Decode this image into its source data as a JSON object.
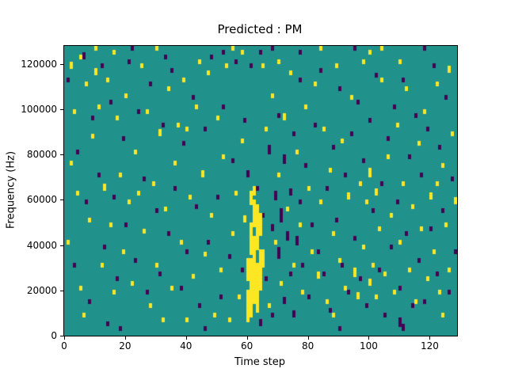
{
  "chart_data": {
    "type": "heatmap",
    "title": "Predicted : PM",
    "xlabel": "Time step",
    "ylabel": "Frequency (Hz)",
    "x_range": [
      0,
      129
    ],
    "y_range": [
      0,
      128000
    ],
    "x_ticks": [
      0,
      20,
      40,
      60,
      80,
      100,
      120
    ],
    "y_ticks": [
      0,
      20000,
      40000,
      60000,
      80000,
      100000,
      120000
    ],
    "grid": {
      "cols": 129,
      "rows": 128,
      "cell_hz": 1000
    },
    "colors": {
      "background": "#21918c",
      "high": "#fde725",
      "low": "#440154"
    },
    "legend": "none",
    "note_runs_format": "[time_step, freq_bin_start(kHz), bin_run_length]",
    "yellow_runs": [
      [
        2,
        118,
        3
      ],
      [
        3,
        98,
        2
      ],
      [
        4,
        62,
        2
      ],
      [
        5,
        20,
        2
      ],
      [
        6,
        8,
        2
      ],
      [
        1,
        40,
        2
      ],
      [
        2,
        75,
        2
      ],
      [
        7,
        110,
        2
      ],
      [
        9,
        87,
        2
      ],
      [
        10,
        115,
        3
      ],
      [
        11,
        100,
        2
      ],
      [
        12,
        30,
        2
      ],
      [
        13,
        64,
        3
      ],
      [
        14,
        112,
        2
      ],
      [
        15,
        48,
        2
      ],
      [
        16,
        18,
        2
      ],
      [
        17,
        95,
        2
      ],
      [
        18,
        70,
        2
      ],
      [
        19,
        36,
        2
      ],
      [
        20,
        105,
        2
      ],
      [
        21,
        58,
        2
      ],
      [
        22,
        22,
        2
      ],
      [
        23,
        80,
        2
      ],
      [
        25,
        118,
        2
      ],
      [
        26,
        45,
        2
      ],
      [
        27,
        98,
        2
      ],
      [
        28,
        12,
        2
      ],
      [
        29,
        66,
        2
      ],
      [
        30,
        30,
        2
      ],
      [
        31,
        88,
        3
      ],
      [
        33,
        55,
        2
      ],
      [
        34,
        108,
        2
      ],
      [
        35,
        20,
        2
      ],
      [
        36,
        75,
        2
      ],
      [
        38,
        40,
        2
      ],
      [
        39,
        112,
        2
      ],
      [
        40,
        90,
        2
      ],
      [
        41,
        60,
        2
      ],
      [
        42,
        25,
        2
      ],
      [
        43,
        100,
        2
      ],
      [
        45,
        70,
        3
      ],
      [
        46,
        35,
        2
      ],
      [
        47,
        115,
        2
      ],
      [
        48,
        52,
        2
      ],
      [
        49,
        8,
        2
      ],
      [
        50,
        95,
        2
      ],
      [
        51,
        28,
        2
      ],
      [
        52,
        78,
        2
      ],
      [
        53,
        118,
        2
      ],
      [
        55,
        44,
        2
      ],
      [
        56,
        62,
        2
      ],
      [
        57,
        16,
        2
      ],
      [
        58,
        85,
        2
      ],
      [
        59,
        50,
        3
      ],
      [
        60,
        6,
        14
      ],
      [
        60,
        24,
        10
      ],
      [
        61,
        8,
        26
      ],
      [
        61,
        36,
        14
      ],
      [
        62,
        14,
        30
      ],
      [
        62,
        48,
        12
      ],
      [
        63,
        10,
        22
      ],
      [
        63,
        38,
        20
      ],
      [
        64,
        20,
        18
      ],
      [
        64,
        44,
        10
      ],
      [
        65,
        30,
        8
      ],
      [
        62,
        62,
        4
      ],
      [
        61,
        58,
        6
      ],
      [
        66,
        90,
        2
      ],
      [
        67,
        12,
        2
      ],
      [
        68,
        105,
        2
      ],
      [
        69,
        40,
        2
      ],
      [
        70,
        70,
        2
      ],
      [
        71,
        22,
        2
      ],
      [
        72,
        95,
        3
      ],
      [
        73,
        55,
        2
      ],
      [
        74,
        115,
        2
      ],
      [
        75,
        30,
        2
      ],
      [
        76,
        80,
        2
      ],
      [
        77,
        48,
        2
      ],
      [
        78,
        18,
        2
      ],
      [
        79,
        100,
        2
      ],
      [
        80,
        64,
        2
      ],
      [
        81,
        36,
        2
      ],
      [
        82,
        110,
        2
      ],
      [
        83,
        25,
        3
      ],
      [
        84,
        58,
        2
      ],
      [
        85,
        90,
        2
      ],
      [
        86,
        14,
        2
      ],
      [
        87,
        72,
        2
      ],
      [
        88,
        44,
        2
      ],
      [
        89,
        118,
        2
      ],
      [
        90,
        32,
        2
      ],
      [
        91,
        85,
        2
      ],
      [
        92,
        20,
        2
      ],
      [
        93,
        60,
        3
      ],
      [
        94,
        104,
        2
      ],
      [
        95,
        26,
        4
      ],
      [
        96,
        16,
        3
      ],
      [
        97,
        66,
        2
      ],
      [
        98,
        38,
        2
      ],
      [
        99,
        58,
        2
      ],
      [
        100,
        22,
        3
      ],
      [
        100,
        70,
        4
      ],
      [
        101,
        30,
        2
      ],
      [
        102,
        62,
        3
      ],
      [
        102,
        16,
        2
      ],
      [
        103,
        46,
        2
      ],
      [
        104,
        112,
        2
      ],
      [
        105,
        26,
        2
      ],
      [
        106,
        78,
        2
      ],
      [
        107,
        52,
        2
      ],
      [
        108,
        18,
        2
      ],
      [
        109,
        92,
        2
      ],
      [
        110,
        40,
        2
      ],
      [
        111,
        66,
        2
      ],
      [
        112,
        108,
        2
      ],
      [
        113,
        28,
        2
      ],
      [
        114,
        56,
        2
      ],
      [
        115,
        14,
        2
      ],
      [
        116,
        84,
        2
      ],
      [
        117,
        46,
        2
      ],
      [
        118,
        98,
        2
      ],
      [
        119,
        24,
        2
      ],
      [
        120,
        60,
        3
      ],
      [
        121,
        36,
        2
      ],
      [
        122,
        110,
        2
      ],
      [
        123,
        18,
        2
      ],
      [
        124,
        74,
        2
      ],
      [
        125,
        48,
        2
      ],
      [
        126,
        28,
        2
      ],
      [
        127,
        88,
        2
      ],
      [
        128,
        58,
        3
      ],
      [
        126,
        116,
        3
      ],
      [
        124,
        8,
        2
      ],
      [
        122,
        66,
        2
      ],
      [
        5,
        122,
        2
      ],
      [
        44,
        120,
        2
      ],
      [
        32,
        6,
        2
      ],
      [
        54,
        6,
        2
      ],
      [
        8,
        50,
        2
      ],
      [
        24,
        62,
        2
      ],
      [
        37,
        92,
        2
      ],
      [
        65,
        118,
        2
      ],
      [
        98,
        120,
        2
      ],
      [
        110,
        120,
        2
      ],
      [
        70,
        120,
        2
      ],
      [
        88,
        8,
        2
      ],
      [
        40,
        6,
        2
      ],
      [
        16,
        124,
        2
      ],
      [
        58,
        124,
        2
      ],
      [
        100,
        124,
        2
      ],
      [
        10,
        126,
        2
      ],
      [
        30,
        126,
        2
      ],
      [
        55,
        126,
        2
      ],
      [
        84,
        126,
        2
      ],
      [
        104,
        126,
        2
      ]
    ],
    "purple_runs": [
      [
        1,
        112,
        2
      ],
      [
        3,
        30,
        2
      ],
      [
        4,
        80,
        2
      ],
      [
        6,
        122,
        3
      ],
      [
        7,
        58,
        2
      ],
      [
        8,
        14,
        2
      ],
      [
        9,
        95,
        2
      ],
      [
        11,
        70,
        2
      ],
      [
        12,
        118,
        2
      ],
      [
        13,
        38,
        2
      ],
      [
        15,
        102,
        2
      ],
      [
        16,
        60,
        2
      ],
      [
        17,
        24,
        2
      ],
      [
        19,
        86,
        2
      ],
      [
        20,
        48,
        2
      ],
      [
        21,
        120,
        2
      ],
      [
        23,
        32,
        2
      ],
      [
        24,
        98,
        2
      ],
      [
        26,
        68,
        2
      ],
      [
        27,
        18,
        2
      ],
      [
        28,
        110,
        2
      ],
      [
        30,
        54,
        2
      ],
      [
        31,
        26,
        2
      ],
      [
        32,
        92,
        2
      ],
      [
        34,
        44,
        2
      ],
      [
        35,
        116,
        2
      ],
      [
        36,
        64,
        2
      ],
      [
        38,
        20,
        2
      ],
      [
        39,
        84,
        2
      ],
      [
        40,
        36,
        2
      ],
      [
        42,
        104,
        2
      ],
      [
        43,
        56,
        2
      ],
      [
        44,
        12,
        2
      ],
      [
        46,
        90,
        2
      ],
      [
        47,
        40,
        2
      ],
      [
        48,
        122,
        2
      ],
      [
        50,
        60,
        2
      ],
      [
        51,
        16,
        2
      ],
      [
        52,
        100,
        2
      ],
      [
        54,
        34,
        2
      ],
      [
        55,
        76,
        2
      ],
      [
        56,
        120,
        2
      ],
      [
        58,
        28,
        2
      ],
      [
        59,
        94,
        2
      ],
      [
        60,
        70,
        3
      ],
      [
        61,
        118,
        2
      ],
      [
        63,
        64,
        2
      ],
      [
        64,
        4,
        3
      ],
      [
        65,
        52,
        2
      ],
      [
        66,
        24,
        2
      ],
      [
        67,
        80,
        4
      ],
      [
        68,
        46,
        3
      ],
      [
        68,
        8,
        2
      ],
      [
        69,
        60,
        4
      ],
      [
        70,
        34,
        5
      ],
      [
        70,
        96,
        2
      ],
      [
        71,
        50,
        6
      ],
      [
        72,
        14,
        3
      ],
      [
        72,
        76,
        4
      ],
      [
        73,
        42,
        4
      ],
      [
        74,
        62,
        3
      ],
      [
        74,
        26,
        2
      ],
      [
        75,
        88,
        2
      ],
      [
        75,
        8,
        3
      ],
      [
        76,
        40,
        4
      ],
      [
        77,
        58,
        2
      ],
      [
        77,
        112,
        2
      ],
      [
        78,
        30,
        2
      ],
      [
        79,
        74,
        2
      ],
      [
        80,
        16,
        2
      ],
      [
        81,
        48,
        2
      ],
      [
        82,
        92,
        2
      ],
      [
        83,
        36,
        2
      ],
      [
        84,
        116,
        2
      ],
      [
        85,
        26,
        2
      ],
      [
        86,
        64,
        2
      ],
      [
        87,
        10,
        2
      ],
      [
        88,
        82,
        2
      ],
      [
        89,
        50,
        2
      ],
      [
        90,
        108,
        2
      ],
      [
        91,
        30,
        2
      ],
      [
        92,
        70,
        2
      ],
      [
        93,
        18,
        2
      ],
      [
        94,
        88,
        2
      ],
      [
        95,
        42,
        2
      ],
      [
        96,
        102,
        2
      ],
      [
        97,
        24,
        2
      ],
      [
        98,
        76,
        2
      ],
      [
        99,
        12,
        2
      ],
      [
        100,
        94,
        2
      ],
      [
        101,
        54,
        2
      ],
      [
        102,
        114,
        2
      ],
      [
        103,
        28,
        2
      ],
      [
        104,
        66,
        2
      ],
      [
        105,
        8,
        2
      ],
      [
        106,
        86,
        2
      ],
      [
        107,
        38,
        2
      ],
      [
        108,
        100,
        2
      ],
      [
        109,
        58,
        2
      ],
      [
        110,
        20,
        2
      ],
      [
        111,
        112,
        2
      ],
      [
        112,
        44,
        2
      ],
      [
        113,
        78,
        2
      ],
      [
        114,
        12,
        2
      ],
      [
        115,
        96,
        2
      ],
      [
        116,
        32,
        2
      ],
      [
        117,
        70,
        2
      ],
      [
        118,
        14,
        2
      ],
      [
        119,
        90,
        2
      ],
      [
        120,
        46,
        2
      ],
      [
        121,
        118,
        2
      ],
      [
        122,
        26,
        2
      ],
      [
        123,
        82,
        2
      ],
      [
        124,
        54,
        2
      ],
      [
        125,
        104,
        2
      ],
      [
        126,
        18,
        2
      ],
      [
        127,
        68,
        2
      ],
      [
        128,
        36,
        2
      ],
      [
        110,
        4,
        4
      ],
      [
        111,
        2,
        3
      ],
      [
        46,
        2,
        2
      ],
      [
        14,
        4,
        2
      ],
      [
        90,
        2,
        2
      ],
      [
        33,
        122,
        2
      ],
      [
        77,
        124,
        2
      ],
      [
        52,
        124,
        2
      ],
      [
        18,
        2,
        2
      ],
      [
        64,
        124,
        2
      ],
      [
        22,
        126,
        2
      ],
      [
        68,
        126,
        2
      ],
      [
        95,
        126,
        2
      ],
      [
        118,
        126,
        2
      ]
    ]
  }
}
